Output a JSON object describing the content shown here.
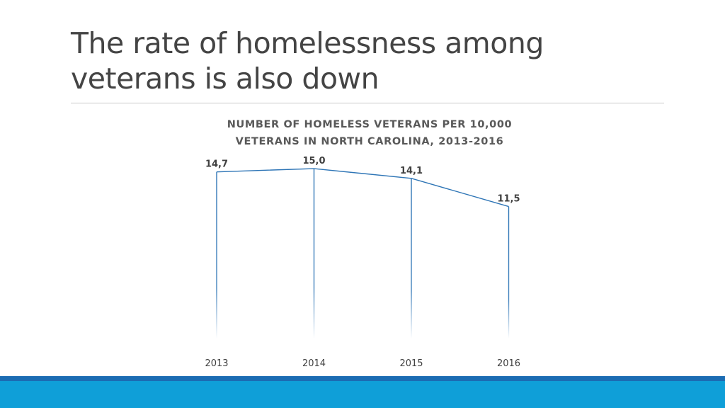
{
  "slide": {
    "title_line1": "The rate of homelessness among",
    "title_line2": "veterans is also down"
  },
  "colors": {
    "line": "#2e75b6",
    "drop_line": "#2e75b6",
    "band_dark": "#1b6cb3",
    "band_light": "#0f9fd8"
  },
  "chart_data": {
    "type": "line",
    "title_line1": "NUMBER OF HOMELESS VETERANS PER 10,000",
    "title_line2": "VETERANS IN NORTH CAROLINA, 2013-2016",
    "categories": [
      "2013",
      "2014",
      "2015",
      "2016"
    ],
    "series": [
      {
        "values": [
          14.7,
          15.0,
          14.1,
          11.5
        ],
        "labels": [
          "14,7",
          "15,0",
          "14,1",
          "11,5"
        ]
      }
    ],
    "drop_lines": true,
    "grid": false,
    "legend": "none"
  }
}
